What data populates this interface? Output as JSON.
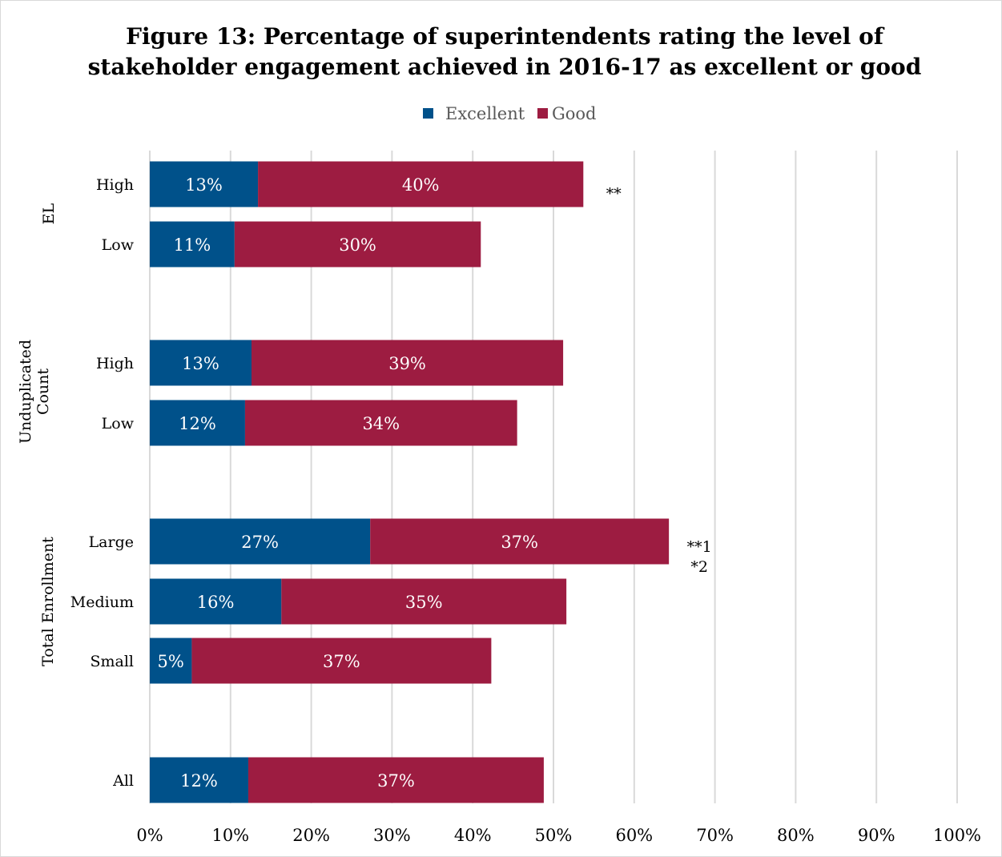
{
  "chart_data": {
    "type": "bar",
    "orientation": "horizontal",
    "stacked": true,
    "title_lines": [
      "Figure 13: Percentage of superintendents rating the level of",
      "stakeholder engagement achieved in 2016-17 as excellent or good"
    ],
    "legend": {
      "placement": "top-center"
    },
    "series": [
      {
        "name": "Excellent",
        "color": "#00518a"
      },
      {
        "name": "Good",
        "color": "#9d1c41"
      }
    ],
    "groups": [
      {
        "label": "EL",
        "label_lines": [
          "EL"
        ],
        "rows": [
          0,
          1
        ]
      },
      {
        "label": "Unduplicated Count",
        "label_lines": [
          "Unduplicated",
          "Count"
        ],
        "rows": [
          2,
          3
        ]
      },
      {
        "label": "Total Enrollment",
        "label_lines": [
          "Total Enrollment"
        ],
        "rows": [
          4,
          5,
          6
        ]
      },
      {
        "label": "",
        "label_lines": [],
        "rows": [
          7
        ]
      }
    ],
    "rows": [
      {
        "label": "High",
        "excellent": 13.4,
        "good": 40.3,
        "excellent_label": "13%",
        "good_label": "40%",
        "annotation": [
          "**"
        ]
      },
      {
        "label": "Low",
        "excellent": 10.5,
        "good": 30.5,
        "excellent_label": "11%",
        "good_label": "30%",
        "annotation": []
      },
      {
        "label": "High",
        "excellent": 12.6,
        "good": 38.6,
        "excellent_label": "13%",
        "good_label": "39%",
        "annotation": []
      },
      {
        "label": "Low",
        "excellent": 11.8,
        "good": 33.7,
        "excellent_label": "12%",
        "good_label": "34%",
        "annotation": []
      },
      {
        "label": "Large",
        "excellent": 27.3,
        "good": 37.0,
        "excellent_label": "27%",
        "good_label": "37%",
        "annotation": [
          "**1",
          "*2"
        ]
      },
      {
        "label": "Medium",
        "excellent": 16.3,
        "good": 35.3,
        "excellent_label": "16%",
        "good_label": "35%",
        "annotation": []
      },
      {
        "label": "Small",
        "excellent": 5.2,
        "good": 37.1,
        "excellent_label": "5%",
        "good_label": "37%",
        "annotation": []
      },
      {
        "label": "All",
        "excellent": 12.2,
        "good": 36.6,
        "excellent_label": "12%",
        "good_label": "37%",
        "annotation": []
      }
    ],
    "xlim": [
      0,
      100
    ],
    "xticks": [
      "0%",
      "10%",
      "20%",
      "30%",
      "40%",
      "50%",
      "60%",
      "70%",
      "80%",
      "90%",
      "100%"
    ],
    "grid": true
  }
}
